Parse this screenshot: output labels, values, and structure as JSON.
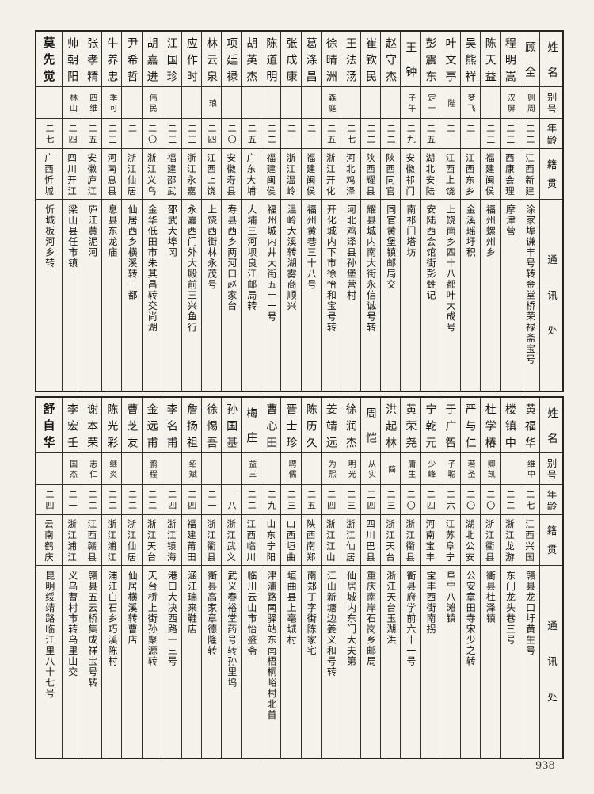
{
  "page_number": "938",
  "headers": {
    "name": "姓名",
    "alias": "别号",
    "age": "年龄",
    "origin": "籍贯",
    "contact": "通讯处"
  },
  "tables": [
    {
      "entries": [
        {
          "name": "顾全",
          "alias": "则周",
          "age": "二二",
          "origin": "江西新建",
          "contact": "涂家埠谦丰号转金堂桥荣禄斋宝号"
        },
        {
          "name": "程明嵩",
          "alias": "汉屏",
          "age": "二三",
          "origin": "西康会理",
          "contact": "摩津营"
        },
        {
          "name": "陈天益",
          "alias": "",
          "age": "二三",
          "origin": "福建闽侯",
          "contact": "福州螺州乡"
        },
        {
          "name": "吴熊祥",
          "alias": "梦飞",
          "age": "二一",
          "origin": "江西东乡",
          "contact": "金溪瑶圩积"
        },
        {
          "name": "叶文亭",
          "alias": "陛",
          "age": "二一",
          "origin": "江西上饶",
          "contact": "上饶南乡四十八都叶大成号"
        },
        {
          "name": "彭震东",
          "alias": "定一",
          "age": "二五",
          "origin": "湖北安陆",
          "contact": "安陆西会馆街彭甡记"
        },
        {
          "name": "王钟",
          "alias": "子午",
          "age": "二九",
          "origin": "安徽祁门",
          "contact": "南祁门塔坊"
        },
        {
          "name": "赵守杰",
          "alias": "",
          "age": "二二",
          "origin": "陕西同官",
          "contact": "同官黄堡镇邮局交"
        },
        {
          "name": "崔钦民",
          "alias": "",
          "age": "二二",
          "origin": "陕西耀县",
          "contact": "耀县城内南大街永信诚号转"
        },
        {
          "name": "王法汤",
          "alias": "",
          "age": "二七",
          "origin": "河北鸡泽",
          "contact": "河北鸡泽县孙堡营村"
        },
        {
          "name": "徐晴洲",
          "alias": "森庭",
          "age": "二五",
          "origin": "浙江开化",
          "contact": "开化城内下市徐怡和宝号转"
        },
        {
          "name": "葛涤昌",
          "alias": "",
          "age": "二一",
          "origin": "福建闽侯",
          "contact": "福州黄巷三十八号"
        },
        {
          "name": "张成康",
          "alias": "",
          "age": "二一",
          "origin": "浙江温岭",
          "contact": "温岭大溪转湖雾商顺兴"
        },
        {
          "name": "陈道明",
          "alias": "",
          "age": "二二",
          "origin": "福建闽侯",
          "contact": "福州城内井大街五十一号"
        },
        {
          "name": "胡英杰",
          "alias": "",
          "age": "二五",
          "origin": "广东大埔",
          "contact": "大埔三河坝良江邮局转"
        },
        {
          "name": "项廷禄",
          "alias": "",
          "age": "二〇",
          "origin": "安徽寿县",
          "contact": "寿县西乡两河口赵家台"
        },
        {
          "name": "林云泉",
          "alias": "琅",
          "age": "二四",
          "origin": "江西上饶",
          "contact": "上饶西街林永茂号"
        },
        {
          "name": "应作时",
          "alias": "",
          "age": "二三",
          "origin": "浙江永嘉",
          "contact": "永嘉西门外大殿前三兴鱼行"
        },
        {
          "name": "江国珍",
          "alias": "",
          "age": "二三",
          "origin": "福建邵武",
          "contact": "邵武大埠冈"
        },
        {
          "name": "胡嘉进",
          "alias": "伟民",
          "age": "二〇",
          "origin": "浙江义乌",
          "contact": "金华低田市朱其昌转交尚湖"
        },
        {
          "name": "尹希哲",
          "alias": "",
          "age": "二一",
          "origin": "浙江仙居",
          "contact": "仙居西乡横溪转一都"
        },
        {
          "name": "牛养忠",
          "alias": "季可",
          "age": "二三",
          "origin": "河南息县",
          "contact": "息县东龙庙"
        },
        {
          "name": "张孝精",
          "alias": "四维",
          "age": "二五",
          "origin": "安徽庐江",
          "contact": "庐江黄泥河"
        },
        {
          "name": "帅朝阳",
          "alias": "林山",
          "age": "二四",
          "origin": "四川开江",
          "contact": "梁山县任市镇"
        },
        {
          "name": "莫先觉",
          "alias": "",
          "age": "二七",
          "origin": "广西忻城",
          "contact": "忻城板河乡转"
        }
      ]
    },
    {
      "entries": [
        {
          "name": "黄福华",
          "alias": "维中",
          "age": "二七",
          "origin": "江西兴国",
          "contact": "赣县龙口圩黄生号"
        },
        {
          "name": "楼镇中",
          "alias": "",
          "age": "二二",
          "origin": "浙江龙游",
          "contact": "东门龙头巷三号"
        },
        {
          "name": "杜学椿",
          "alias": "卿凯",
          "age": "二〇",
          "origin": "浙江衢县",
          "contact": "衢县杜泽镇"
        },
        {
          "name": "严与仁",
          "alias": "若圣",
          "age": "二〇",
          "origin": "湖北公安",
          "contact": "公安章田寺宋少之转"
        },
        {
          "name": "于广智",
          "alias": "子聪",
          "age": "二六",
          "origin": "江苏阜宁",
          "contact": "阜宁八滩镇"
        },
        {
          "name": "宁乾元",
          "alias": "少峰",
          "age": "二四",
          "origin": "河南宝丰",
          "contact": "宝丰西街南拐"
        },
        {
          "name": "黄荣尧",
          "alias": "庸生",
          "age": "二〇",
          "origin": "浙江衢县",
          "contact": "衢县府学前六十一号"
        },
        {
          "name": "洪起林",
          "alias": "简",
          "age": "二三",
          "origin": "浙江天台",
          "contact": "浙江天台玉湖洪"
        },
        {
          "name": "周恺",
          "alias": "从实",
          "age": "三四",
          "origin": "四川巴县",
          "contact": "重庆南岸石岗乡邮局"
        },
        {
          "name": "徐润杰",
          "alias": "明光",
          "age": "二三",
          "origin": "浙江仙居",
          "contact": "仙居城内东门大夫第"
        },
        {
          "name": "姜靖远",
          "alias": "为熙",
          "age": "二四",
          "origin": "浙江江山",
          "contact": "江山新塘边姜义和号转"
        },
        {
          "name": "陈历久",
          "alias": "",
          "age": "二五",
          "origin": "陕西南郑",
          "contact": "南郑丁字街陈家宅"
        },
        {
          "name": "晋士珍",
          "alias": "聘儒",
          "age": "二三",
          "origin": "山西垣曲",
          "contact": "垣曲县上亳城村"
        },
        {
          "name": "曹心田",
          "alias": "",
          "age": "二九",
          "origin": "山东宁阳",
          "contact": "津浦路南驿站东南梧桐峪村北首"
        },
        {
          "name": "梅庄",
          "alias": "益三",
          "age": "二二",
          "origin": "江西临川",
          "contact": "临川云山市怡盛斋"
        },
        {
          "name": "孙国基",
          "alias": "",
          "age": "一八",
          "origin": "浙江武义",
          "contact": "武义春裕堂药号转孙里坞"
        },
        {
          "name": "徐惕吾",
          "alias": "",
          "age": "二一",
          "origin": "浙江衢县",
          "contact": "衢县高家章德隆转"
        },
        {
          "name": "詹扬祖",
          "alias": "绍斌",
          "age": "二四",
          "origin": "福建莆田",
          "contact": "涵江瑞来鞋店"
        },
        {
          "name": "李名甫",
          "alias": "",
          "age": "二四",
          "origin": "浙江镇海",
          "contact": "港口大决西路一三号"
        },
        {
          "name": "金远甫",
          "alias": "鹏程",
          "age": "二二",
          "origin": "浙江天台",
          "contact": "天台桥上街孙聚源转"
        },
        {
          "name": "曹芝友",
          "alias": "",
          "age": "二二",
          "origin": "浙江仙居",
          "contact": "仙居横溪转曹店"
        },
        {
          "name": "陈光彩",
          "alias": "继炎",
          "age": "二二",
          "origin": "浙江浦江",
          "contact": "浦江白石乡巧溪陈村"
        },
        {
          "name": "谢本荣",
          "alias": "志仁",
          "age": "二二",
          "origin": "江西赣县",
          "contact": "赣县五云桥集成祥宝号转"
        },
        {
          "name": "李宏壬",
          "alias": "国杰",
          "age": "二一",
          "origin": "浙江浦江",
          "contact": "义乌曹村市转乌里山交"
        },
        {
          "name": "舒自华",
          "alias": "",
          "age": "二四",
          "origin": "云南鹤庆",
          "contact": "昆明绥靖路临江里八十七号"
        }
      ]
    }
  ]
}
